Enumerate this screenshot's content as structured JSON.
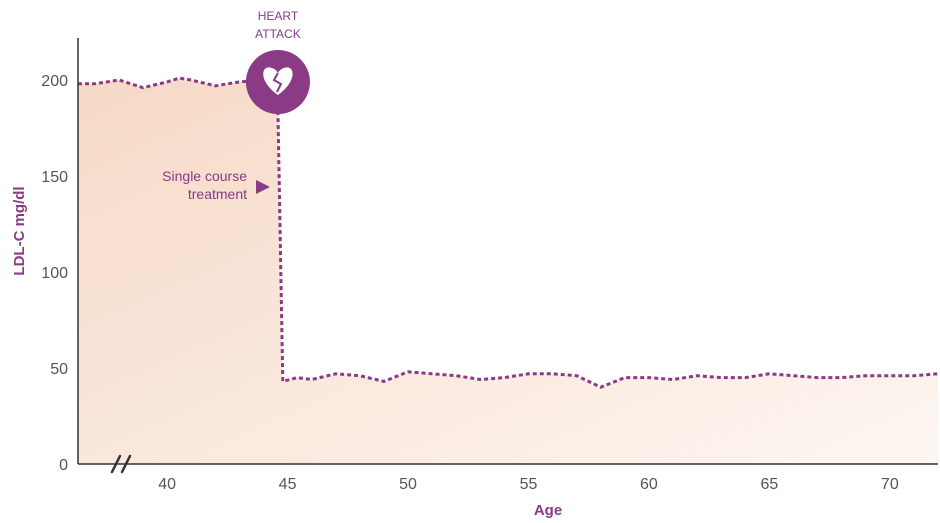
{
  "chart_data": {
    "type": "line",
    "title": "",
    "xlabel": "Age",
    "ylabel": "LDL-C mg/dl",
    "xlim": [
      36.3,
      72
    ],
    "ylim": [
      0,
      220
    ],
    "x_ticks": [
      40,
      45,
      50,
      55,
      60,
      65,
      70
    ],
    "y_ticks": [
      0,
      50,
      100,
      150,
      200
    ],
    "grid": false,
    "axis_break_marker": "//",
    "colors": {
      "line": "#8b3a86",
      "fill_start": "#f6d9c7",
      "fill_end": "#fdf6f1",
      "axis": "#333333"
    },
    "series": [
      {
        "values_x": [
          36.3,
          37.0,
          38.0,
          39.0,
          40.0,
          40.5,
          41.0,
          42.0,
          43.0,
          44.0,
          44.6,
          44.8,
          45.4,
          46.0,
          47.0,
          48.0,
          49.0,
          50.0,
          51.0,
          52.0,
          53.0,
          54.0,
          55.0,
          56.0,
          57.0,
          58.0,
          59.0,
          60.0,
          61.0,
          62.0,
          63.0,
          64.0,
          65.0,
          66.0,
          67.0,
          68.0,
          69.0,
          70.0,
          71.0,
          72.0
        ],
        "values_y": [
          198,
          198,
          200,
          196,
          199,
          201,
          200,
          197,
          199,
          200,
          185,
          43,
          45,
          44,
          47,
          46,
          43,
          48,
          47,
          46,
          44,
          45,
          47,
          47,
          46,
          40,
          45,
          45,
          44,
          46,
          45,
          45,
          47,
          46,
          45,
          45,
          46,
          46,
          46,
          47
        ]
      }
    ],
    "annotations": {
      "event": {
        "line1": "HEART",
        "line2": "ATTACK",
        "icon": "broken-heart-icon",
        "x": 44.6,
        "y": 200
      },
      "treatment": {
        "line1": "Single course",
        "line2": "treatment",
        "icon": "arrow-right-icon",
        "x": 44.6,
        "y": 150
      }
    }
  }
}
